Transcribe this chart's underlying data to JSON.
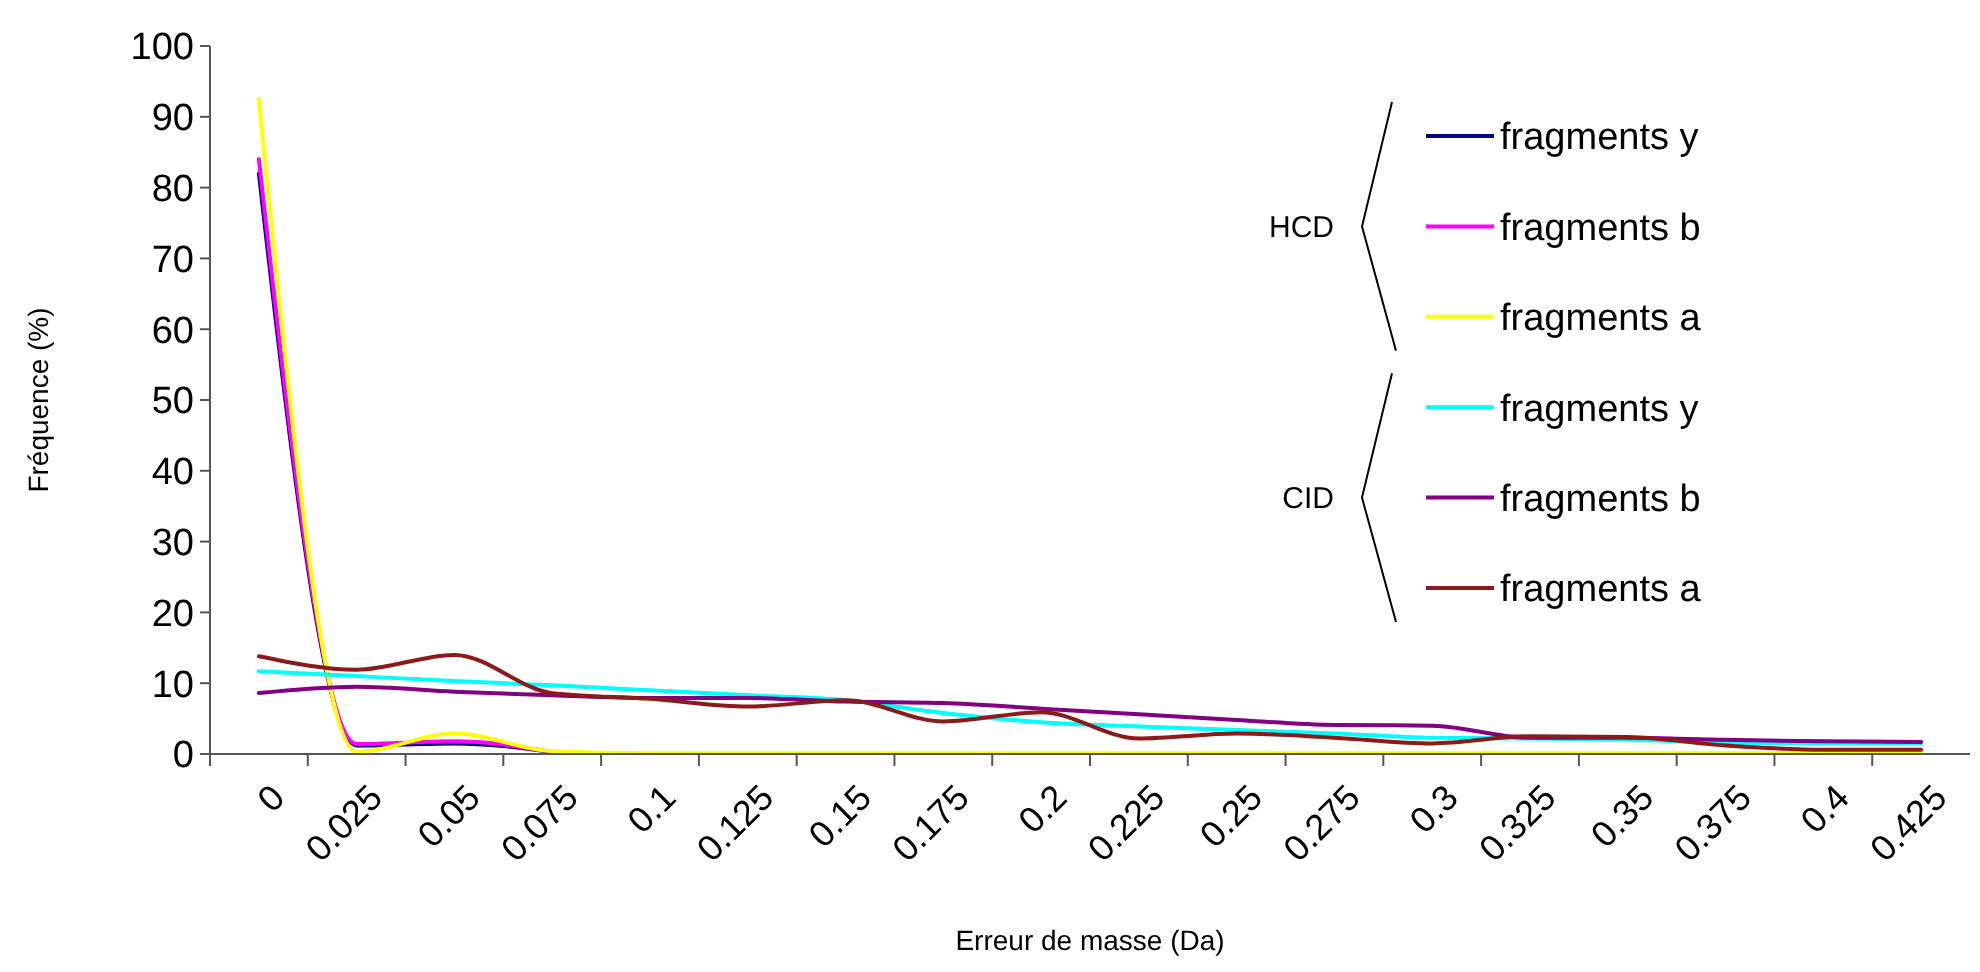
{
  "chart_data": {
    "type": "line",
    "xlabel": "Erreur de masse (Da)",
    "ylabel": "Fréquence (%)",
    "categories": [
      "0",
      "0.025",
      "0.05",
      "0.075",
      "0.1",
      "0.125",
      "0.15",
      "0.175",
      "0.2",
      "0.225",
      "0.25",
      "0.275",
      "0.3",
      "0.325",
      "0.35",
      "0.375",
      "0.4",
      "0.425"
    ],
    "series": [
      {
        "name": "fragments y",
        "color": "#000080",
        "values": [
          82,
          1.2,
          1.5,
          0.3,
          null,
          null,
          null,
          null,
          null,
          null,
          null,
          null,
          null,
          null,
          null,
          null,
          null,
          null
        ]
      },
      {
        "name": "fragments b",
        "color": "#ff00ff",
        "values": [
          84,
          1.4,
          1.8,
          0.3,
          null,
          null,
          null,
          null,
          null,
          null,
          null,
          null,
          null,
          null,
          null,
          null,
          null,
          null
        ]
      },
      {
        "name": "fragments a",
        "color": "#ffff00",
        "values": [
          92.5,
          0.3,
          2.9,
          0.4,
          0.1,
          0.1,
          0.1,
          0.1,
          0.1,
          0.1,
          0.1,
          0.1,
          0.1,
          0.1,
          0.1,
          0.1,
          0.1,
          0.1
        ]
      },
      {
        "name": "fragments y",
        "color": "#00ffff",
        "values": [
          11.7,
          11,
          10.3,
          9.7,
          9,
          8.3,
          7.6,
          5.8,
          4.5,
          3.9,
          3.4,
          2.9,
          2.3,
          2.2,
          2,
          1.6,
          1.5,
          1.5
        ]
      },
      {
        "name": "fragments b",
        "color": "#800080",
        "values": [
          8.6,
          9.5,
          8.8,
          8.3,
          7.9,
          7.9,
          7.4,
          7.2,
          6.4,
          5.6,
          4.8,
          4.1,
          4,
          2.3,
          2.3,
          2,
          1.8,
          1.7
        ]
      },
      {
        "name": "fragments a",
        "color": "#8b1a1a",
        "values": [
          13.8,
          11.9,
          14,
          8.6,
          7.8,
          6.7,
          7.6,
          4.6,
          5.9,
          2.2,
          2.9,
          2.3,
          1.5,
          2.5,
          2.4,
          1.2,
          0.6,
          0.6
        ]
      }
    ],
    "ylim": [
      0,
      100
    ],
    "yticks": [
      0,
      10,
      20,
      30,
      40,
      50,
      60,
      70,
      80,
      90,
      100
    ],
    "grid": false,
    "legend": "top right",
    "marker": "none",
    "line_style": "solid",
    "annotations": [
      "HCD",
      "CID"
    ]
  }
}
